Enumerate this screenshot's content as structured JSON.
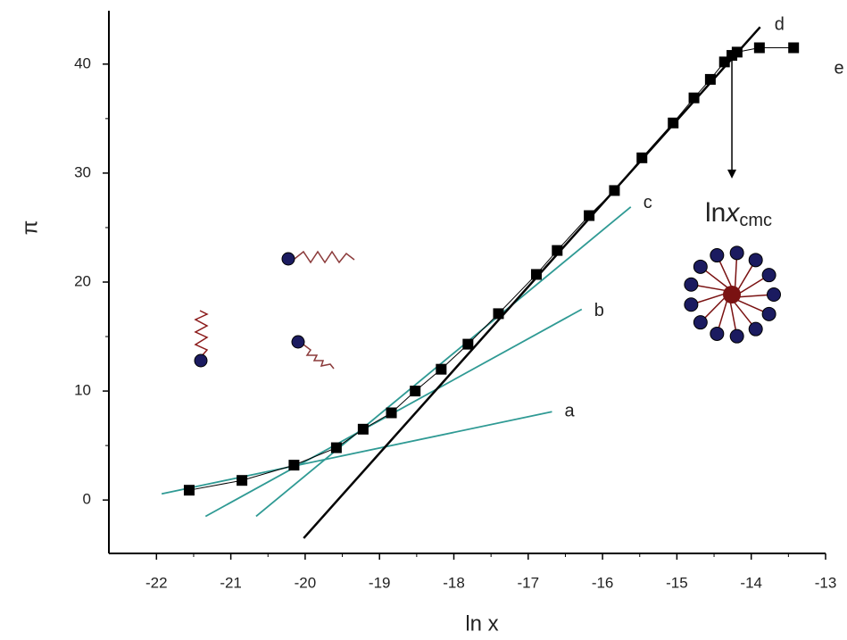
{
  "chart_data": {
    "type": "line",
    "x_label": "ln x",
    "y_label": "π",
    "xlim": [
      -22.64,
      -13
    ],
    "ylim": [
      -4.9,
      44.9
    ],
    "xticks": [
      -22,
      -21,
      -20,
      -19,
      -18,
      -17,
      -16,
      -15,
      -14,
      -13
    ],
    "yticks": [
      0,
      10,
      20,
      30,
      40
    ],
    "series": [
      {
        "color": "#000000",
        "x": [
          -21.56,
          -20.85,
          -20.15,
          -19.58,
          -19.22,
          -18.84,
          -18.52,
          -18.17,
          -17.81,
          -17.4,
          -16.89,
          -16.61,
          -16.18,
          -15.84,
          -15.47,
          -15.05,
          -14.77,
          -14.55,
          -14.36,
          -14.26,
          -14.19,
          -13.89,
          -13.43
        ],
        "values": [
          0.9,
          1.8,
          3.2,
          4.8,
          6.5,
          8.0,
          10.0,
          12.0,
          14.3,
          17.1,
          20.7,
          22.9,
          26.1,
          28.4,
          31.4,
          34.6,
          36.9,
          38.6,
          40.2,
          40.8,
          41.1,
          41.5,
          41.5
        ]
      }
    ],
    "fit_lines": [
      {
        "label": "a",
        "color": "#2f9a94",
        "x": [
          -21.93,
          -16.68
        ],
        "values": [
          0.57,
          8.1
        ]
      },
      {
        "label": "b",
        "color": "#2f9a94",
        "x": [
          -21.34,
          -16.28
        ],
        "values": [
          -1.5,
          17.5
        ]
      },
      {
        "label": "c",
        "color": "#2f9a94",
        "x": [
          -20.66,
          -15.62
        ],
        "values": [
          -1.5,
          26.9
        ]
      },
      {
        "label": "d",
        "color": "#000000",
        "x": [
          -20.02,
          -13.88
        ],
        "values": [
          -3.5,
          43.4
        ]
      }
    ],
    "plateau_label": "e",
    "cmc_arrow": {
      "x": -14.26,
      "values": [
        40.8,
        29.5
      ]
    },
    "cmc_label": {
      "base": "ln",
      "var": "x",
      "sub": "cmc"
    }
  }
}
